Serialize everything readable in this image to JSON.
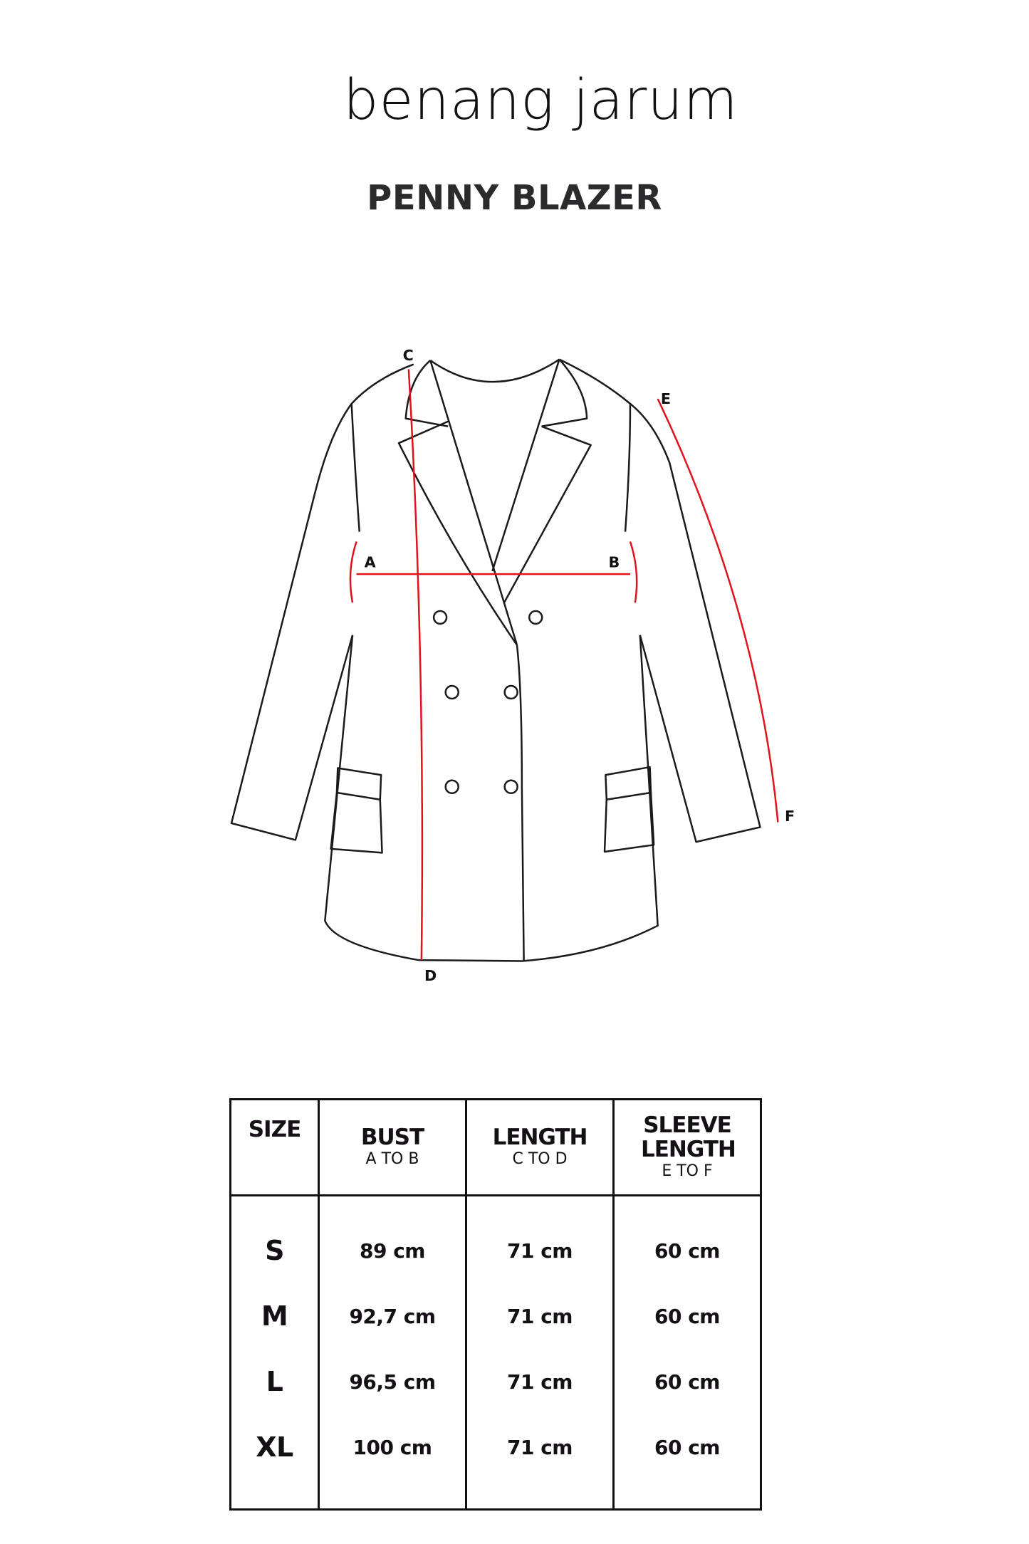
{
  "brand": {
    "logo_text": "benang jarum"
  },
  "title": "PENNY BLAZER",
  "diagram": {
    "points": [
      "A",
      "B",
      "C",
      "D",
      "E",
      "F"
    ],
    "measure_color": "#e0121b",
    "outline_color": "#1a1a1a"
  },
  "table": {
    "headers": [
      {
        "label": "SIZE",
        "sub": ""
      },
      {
        "label": "BUST",
        "sub": "A TO B"
      },
      {
        "label": "LENGTH",
        "sub": "C TO D"
      },
      {
        "label": "SLEEVE LENGTH",
        "sub": "E TO F"
      }
    ],
    "rows": [
      {
        "size": "S",
        "bust": "89 cm",
        "length": "71 cm",
        "sleeve": "60 cm"
      },
      {
        "size": "M",
        "bust": "92,7 cm",
        "length": "71 cm",
        "sleeve": "60 cm"
      },
      {
        "size": "L",
        "bust": "96,5 cm",
        "length": "71 cm",
        "sleeve": "60 cm"
      },
      {
        "size": "XL",
        "bust": "100 cm",
        "length": "71 cm",
        "sleeve": "60 cm"
      }
    ]
  }
}
